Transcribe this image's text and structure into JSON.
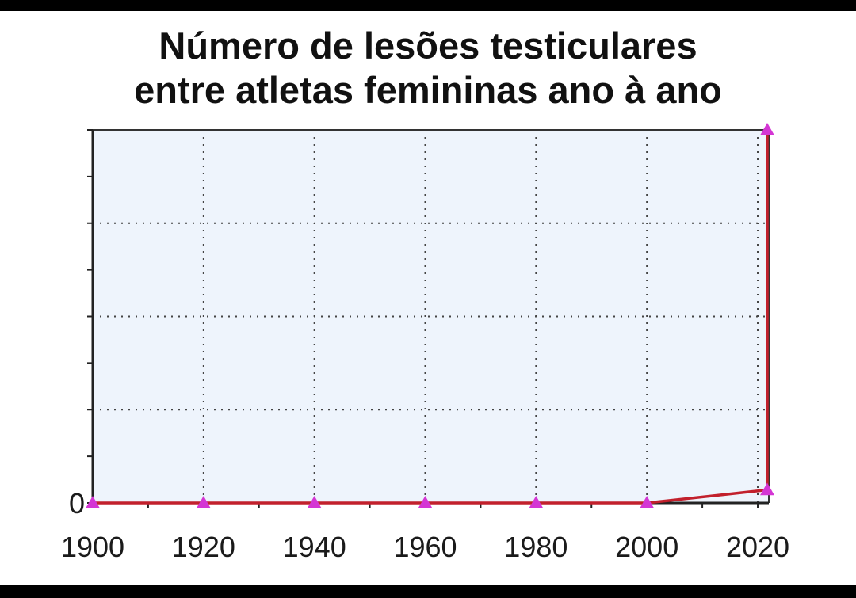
{
  "chart_data": {
    "type": "line",
    "title": [
      "Número de lesões testiculares",
      "entre atletas femininas ano à ano"
    ],
    "xlabel": "",
    "ylabel": "",
    "x": [
      1900,
      1920,
      1940,
      1960,
      1980,
      2000,
      2022,
      2023
    ],
    "y": [
      0,
      0,
      0,
      0,
      0,
      0,
      0.035,
      1
    ],
    "xlim": [
      1900,
      2022
    ],
    "ylim": [
      0,
      1
    ],
    "x_ticks": [
      "1900",
      "1920",
      "1940",
      "1960",
      "1980",
      "2000",
      "2020"
    ],
    "y_ticks": [
      "0"
    ],
    "grid": true,
    "legend": "none",
    "colors": {
      "line": "#c2202c",
      "marker": "#d436d4",
      "plot_background": "#eef4fc",
      "grid": "#444444"
    }
  }
}
